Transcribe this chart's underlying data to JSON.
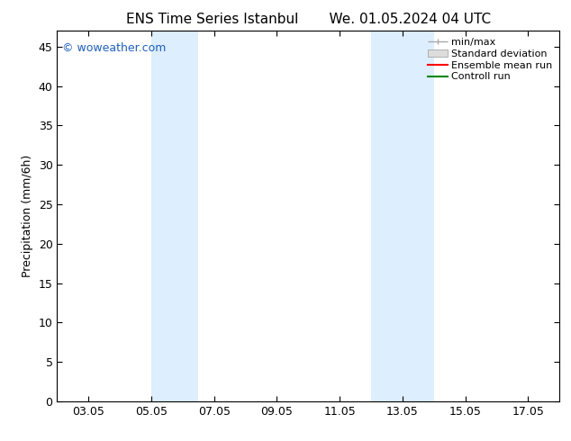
{
  "title_left": "ENS Time Series Istanbul",
  "title_right": "We. 01.05.2024 04 UTC",
  "ylabel": "Precipitation (mm/6h)",
  "xlabel": "",
  "ylim": [
    0,
    47
  ],
  "yticks": [
    0,
    5,
    10,
    15,
    20,
    25,
    30,
    35,
    40,
    45
  ],
  "xtick_labels": [
    "03.05",
    "05.05",
    "07.05",
    "09.05",
    "11.05",
    "13.05",
    "15.05",
    "17.05"
  ],
  "xtick_positions": [
    2,
    4,
    6,
    8,
    10,
    12,
    14,
    16
  ],
  "xlim": [
    1,
    17
  ],
  "shaded_bands": [
    {
      "x_start": 4.0,
      "x_end": 5.5
    },
    {
      "x_start": 11.0,
      "x_end": 13.0
    }
  ],
  "band_color": "#ddeeff",
  "background_color": "#ffffff",
  "watermark": "© woweather.com",
  "watermark_color": "#1a5fcc",
  "legend_labels": [
    "min/max",
    "Standard deviation",
    "Ensemble mean run",
    "Controll run"
  ],
  "legend_colors": [
    "#aaaaaa",
    "#cccccc",
    "#ff0000",
    "#008800"
  ],
  "title_fontsize": 11,
  "axis_label_fontsize": 9,
  "tick_fontsize": 9,
  "legend_fontsize": 8,
  "watermark_fontsize": 9
}
